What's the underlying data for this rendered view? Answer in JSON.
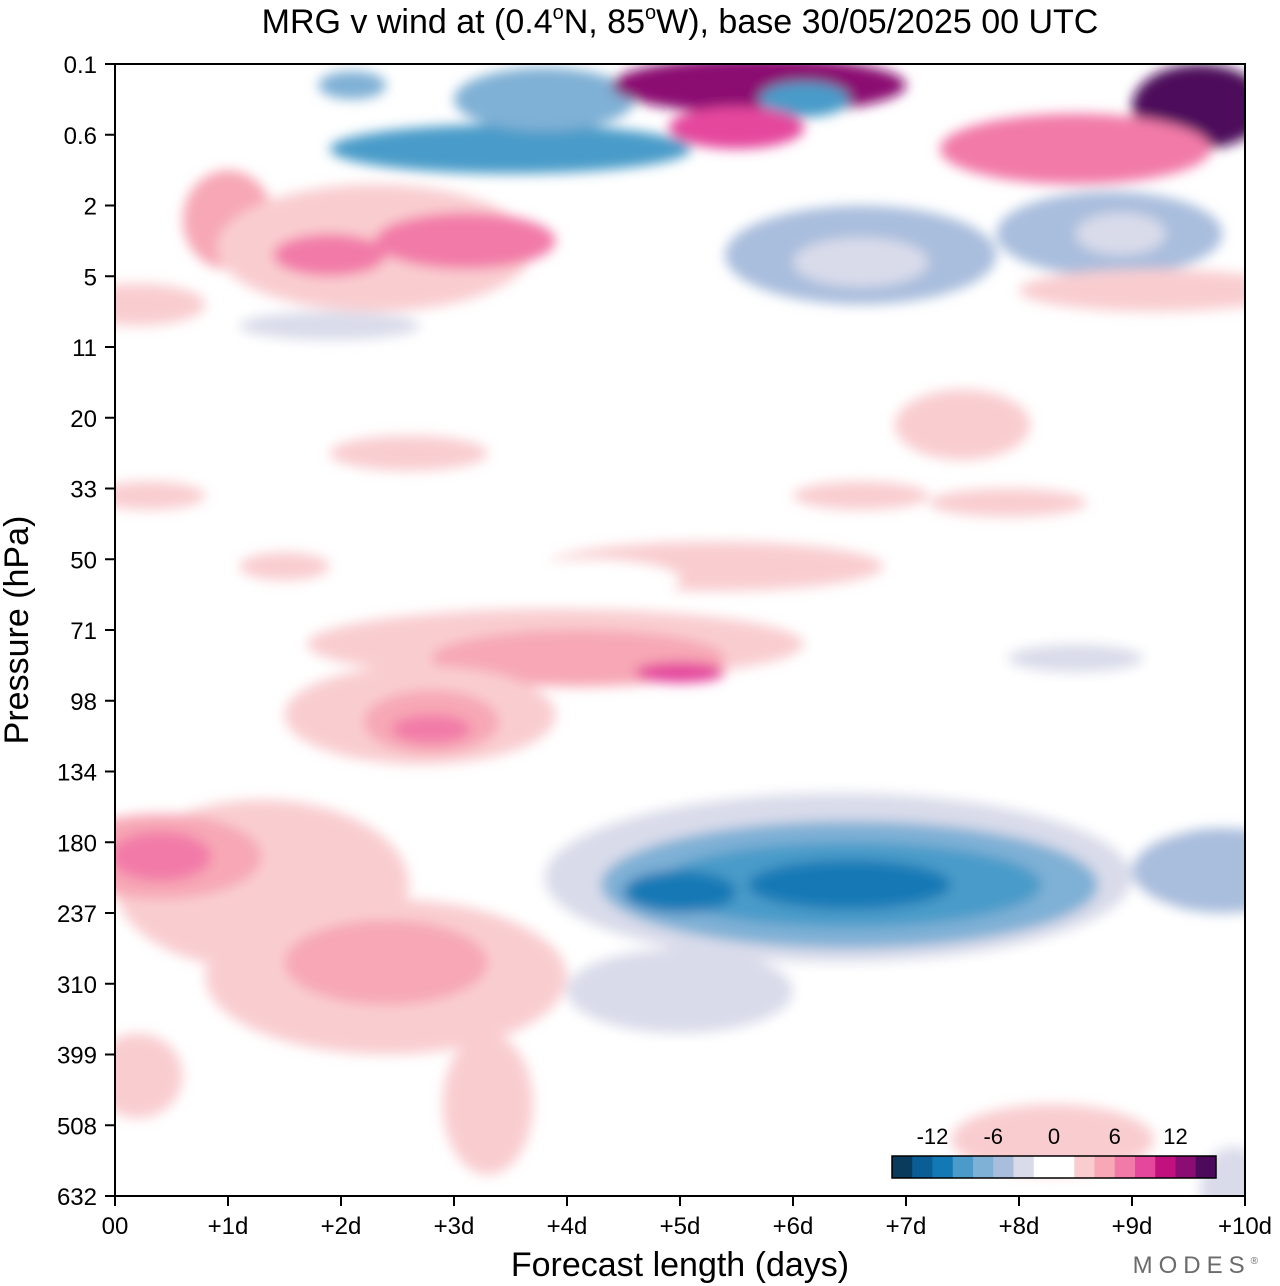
{
  "chart_data": {
    "type": "heatmap",
    "title": {
      "prefix": "MRG v wind at (0.4",
      "deg1": "o",
      "middle": "N, 85",
      "deg2": "o",
      "suffix": "W),  base 30/05/2025  00 UTC"
    },
    "xlabel": "Forecast length (days)",
    "ylabel": "Pressure (hPa)",
    "x_range": [
      0,
      10
    ],
    "x_ticks": [
      {
        "value": 0,
        "label": "00"
      },
      {
        "value": 1,
        "label": "+1d"
      },
      {
        "value": 2,
        "label": "+2d"
      },
      {
        "value": 3,
        "label": "+3d"
      },
      {
        "value": 4,
        "label": "+4d"
      },
      {
        "value": 5,
        "label": "+5d"
      },
      {
        "value": 6,
        "label": "+6d"
      },
      {
        "value": 7,
        "label": "+7d"
      },
      {
        "value": 8,
        "label": "+8d"
      },
      {
        "value": 9,
        "label": "+9d"
      },
      {
        "value": 10,
        "label": "+10d"
      }
    ],
    "y_ticks": [
      "0.1",
      "0.6",
      "2",
      "5",
      "11",
      "20",
      "33",
      "50",
      "71",
      "98",
      "134",
      "180",
      "237",
      "310",
      "399",
      "508",
      "632"
    ],
    "colorbar": {
      "levels": [
        -16,
        -14,
        -12,
        -10,
        -8,
        -6,
        -4,
        -2,
        0,
        2,
        4,
        6,
        8,
        10,
        12,
        14,
        16
      ],
      "colors": [
        "#0a3a5c",
        "#0b5e95",
        "#1379b5",
        "#4a9bc9",
        "#7fb0d5",
        "#a9bddd",
        "#d9dbea",
        "#ffffff",
        "#ffffff",
        "#f9cdd0",
        "#f7a7b5",
        "#f27aa8",
        "#e5479d",
        "#c0117f",
        "#8b0c72",
        "#4d0a5c"
      ],
      "labels": [
        {
          "value": -12,
          "text": "-12"
        },
        {
          "value": -6,
          "text": "-6"
        },
        {
          "value": 0,
          "text": "0"
        },
        {
          "value": 6,
          "text": "6"
        },
        {
          "value": 12,
          "text": "12"
        }
      ]
    },
    "blobs": [
      {
        "x": 1.0,
        "y": 2.2,
        "rx": 0.4,
        "ry": 0.7,
        "v": 4
      },
      {
        "x": 2.3,
        "y": 2.6,
        "rx": 1.4,
        "ry": 0.9,
        "v": 3
      },
      {
        "x": 3.1,
        "y": 2.5,
        "rx": 0.8,
        "ry": 0.4,
        "v": 6
      },
      {
        "x": 1.9,
        "y": 2.7,
        "rx": 0.5,
        "ry": 0.3,
        "v": 6
      },
      {
        "x": 6.6,
        "y": 2.7,
        "rx": 1.2,
        "ry": 0.7,
        "v": -6
      },
      {
        "x": 8.8,
        "y": 2.4,
        "rx": 1.0,
        "ry": 0.6,
        "v": -6
      },
      {
        "x": 6.6,
        "y": 2.8,
        "rx": 0.6,
        "ry": 0.35,
        "v": -4
      },
      {
        "x": 8.9,
        "y": 2.4,
        "rx": 0.4,
        "ry": 0.3,
        "v": -4
      },
      {
        "x": 3.5,
        "y": 1.2,
        "rx": 1.6,
        "ry": 0.35,
        "v": -9
      },
      {
        "x": 3.8,
        "y": 0.5,
        "rx": 0.8,
        "ry": 0.45,
        "v": -7
      },
      {
        "x": 2.1,
        "y": 0.3,
        "rx": 0.3,
        "ry": 0.2,
        "v": -8
      },
      {
        "x": 0.6,
        "y": 0.4,
        "rx": 0.5,
        "ry": 0.2,
        "v": -2
      },
      {
        "x": 5.7,
        "y": 0.3,
        "rx": 1.3,
        "ry": 0.4,
        "v": 13
      },
      {
        "x": 9.6,
        "y": 0.6,
        "rx": 0.6,
        "ry": 0.6,
        "v": 14
      },
      {
        "x": 8.5,
        "y": 1.2,
        "rx": 1.2,
        "ry": 0.5,
        "v": 6
      },
      {
        "x": 6.1,
        "y": 0.5,
        "rx": 0.4,
        "ry": 0.25,
        "v": -10
      },
      {
        "x": 5.5,
        "y": 0.9,
        "rx": 0.6,
        "ry": 0.3,
        "v": 9
      },
      {
        "x": 9.2,
        "y": 3.2,
        "rx": 1.2,
        "ry": 0.3,
        "v": 3
      },
      {
        "x": 0.2,
        "y": 3.4,
        "rx": 0.6,
        "ry": 0.3,
        "v": 3
      },
      {
        "x": 1.9,
        "y": 3.7,
        "rx": 0.8,
        "ry": 0.2,
        "v": -3
      },
      {
        "x": 4.7,
        "y": 3.7,
        "rx": 1.0,
        "ry": 0.25,
        "v": -2
      },
      {
        "x": 7.5,
        "y": 5.1,
        "rx": 0.6,
        "ry": 0.5,
        "v": 2
      },
      {
        "x": 2.6,
        "y": 5.5,
        "rx": 0.7,
        "ry": 0.25,
        "v": 2
      },
      {
        "x": 0.3,
        "y": 6.1,
        "rx": 0.5,
        "ry": 0.2,
        "v": 2
      },
      {
        "x": 6.6,
        "y": 6.1,
        "rx": 0.6,
        "ry": 0.2,
        "v": 2
      },
      {
        "x": 7.9,
        "y": 6.2,
        "rx": 0.7,
        "ry": 0.2,
        "v": 2
      },
      {
        "x": 1.5,
        "y": 7.1,
        "rx": 0.4,
        "ry": 0.2,
        "v": 2
      },
      {
        "x": 5.3,
        "y": 7.1,
        "rx": 1.5,
        "ry": 0.35,
        "v": 2
      },
      {
        "x": 4.2,
        "y": 7.3,
        "rx": 0.8,
        "ry": 0.3,
        "v": -2
      },
      {
        "x": 0.8,
        "y": 8.1,
        "rx": 0.6,
        "ry": 0.5,
        "v": -2
      },
      {
        "x": 8.0,
        "y": 8.2,
        "rx": 2.1,
        "ry": 0.5,
        "v": -2
      },
      {
        "x": 8.5,
        "y": 8.4,
        "rx": 0.6,
        "ry": 0.2,
        "v": -4
      },
      {
        "x": 3.9,
        "y": 8.2,
        "rx": 2.2,
        "ry": 0.5,
        "v": 2
      },
      {
        "x": 4.1,
        "y": 8.4,
        "rx": 1.3,
        "ry": 0.4,
        "v": 4
      },
      {
        "x": 5.0,
        "y": 8.6,
        "rx": 0.4,
        "ry": 0.15,
        "v": 8
      },
      {
        "x": 2.7,
        "y": 9.2,
        "rx": 1.2,
        "ry": 0.7,
        "v": 2
      },
      {
        "x": 2.8,
        "y": 9.3,
        "rx": 0.6,
        "ry": 0.45,
        "v": 4
      },
      {
        "x": 2.8,
        "y": 9.4,
        "rx": 0.35,
        "ry": 0.2,
        "v": 7
      },
      {
        "x": 0.4,
        "y": 9.5,
        "rx": 0.6,
        "ry": 0.4,
        "v": -2
      },
      {
        "x": 6.4,
        "y": 11.3,
        "rx": 3.2,
        "ry": 1.8,
        "v": -2
      },
      {
        "x": 6.4,
        "y": 11.5,
        "rx": 2.6,
        "ry": 1.2,
        "v": -4
      },
      {
        "x": 6.5,
        "y": 11.6,
        "rx": 2.2,
        "ry": 0.9,
        "v": -7
      },
      {
        "x": 6.5,
        "y": 11.6,
        "rx": 1.7,
        "ry": 0.6,
        "v": -9
      },
      {
        "x": 6.5,
        "y": 11.6,
        "rx": 0.9,
        "ry": 0.35,
        "v": -12
      },
      {
        "x": 5.0,
        "y": 11.7,
        "rx": 0.5,
        "ry": 0.3,
        "v": -12
      },
      {
        "x": 9.8,
        "y": 11.4,
        "rx": 0.8,
        "ry": 0.6,
        "v": -6
      },
      {
        "x": 5.0,
        "y": 13.1,
        "rx": 1.0,
        "ry": 0.6,
        "v": -4
      },
      {
        "x": 9.7,
        "y": 14.6,
        "rx": 0.8,
        "ry": 1.2,
        "v": -2
      },
      {
        "x": 9.9,
        "y": 15.9,
        "rx": 0.3,
        "ry": 0.6,
        "v": -4
      },
      {
        "x": 1.3,
        "y": 11.6,
        "rx": 1.3,
        "ry": 1.2,
        "v": 2
      },
      {
        "x": 0.4,
        "y": 11.2,
        "rx": 0.9,
        "ry": 0.6,
        "v": 4
      },
      {
        "x": 0.4,
        "y": 11.2,
        "rx": 0.45,
        "ry": 0.35,
        "v": 7
      },
      {
        "x": 2.4,
        "y": 12.9,
        "rx": 1.6,
        "ry": 1.1,
        "v": 2
      },
      {
        "x": 2.4,
        "y": 12.7,
        "rx": 0.9,
        "ry": 0.6,
        "v": 4
      },
      {
        "x": 3.3,
        "y": 14.7,
        "rx": 0.4,
        "ry": 1.0,
        "v": 2
      },
      {
        "x": 0.2,
        "y": 14.3,
        "rx": 0.4,
        "ry": 0.6,
        "v": 2
      },
      {
        "x": 8.3,
        "y": 15.2,
        "rx": 0.9,
        "ry": 0.5,
        "v": 2
      }
    ]
  }
}
